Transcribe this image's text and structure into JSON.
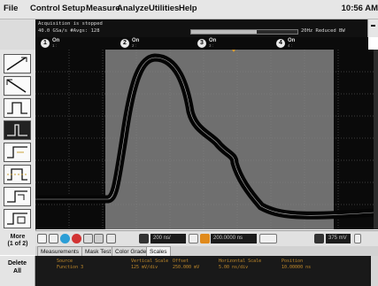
{
  "menu": {
    "items": [
      "File",
      "Control",
      "Setup",
      "Measure",
      "Analyze",
      "Utilities",
      "Help"
    ],
    "clock": "10:56 AM"
  },
  "status": {
    "line1": "Acquisition is stopped",
    "line2": "40.0 GSa/s  #Avgs: 128",
    "right": "20Hz Reduced BW",
    "progress": 0.62
  },
  "channels": [
    {
      "num": "1",
      "state": "On",
      "sub": "1 :"
    },
    {
      "num": "2",
      "state": "On",
      "sub": "2 :"
    },
    {
      "num": "3",
      "state": "On",
      "sub": "3 :"
    },
    {
      "num": "4",
      "state": "On",
      "sub": "4 :"
    }
  ],
  "toolbar": {
    "more_label": "More",
    "more_page": "(1 of 2)",
    "delete_label": "Delete",
    "delete_sub": "All"
  },
  "timebase": {
    "scale": "200 ns/",
    "position": "200.0000 ns",
    "trigger_level": "375 mV"
  },
  "tabs": [
    "Measurements",
    "Mask Test",
    "Color Grade",
    "Scales"
  ],
  "active_tab": "Scales",
  "measurements": {
    "headers": {
      "source": "Source",
      "vscale": "Vertical Scale",
      "offset": "Offset",
      "hscale": "Horizontal Scale",
      "position": "Position"
    },
    "row": {
      "source": "Function 3",
      "vscale": "125 mV/div",
      "offset": "250.000 mV",
      "hscale": "5.00 ns/div",
      "position": "10.00000 ns"
    }
  },
  "colors": {
    "screen_bg": "#0a0a0a",
    "capture_window": "#6f6f6f",
    "trace": "#060606",
    "measure_text": "#c28a2a"
  },
  "icons": [
    "line-rise-icon",
    "line-fall-icon",
    "pulse-icon",
    "glitch-icon",
    "step-icon",
    "window-icon",
    "setup-icon",
    "zoom-icon"
  ]
}
